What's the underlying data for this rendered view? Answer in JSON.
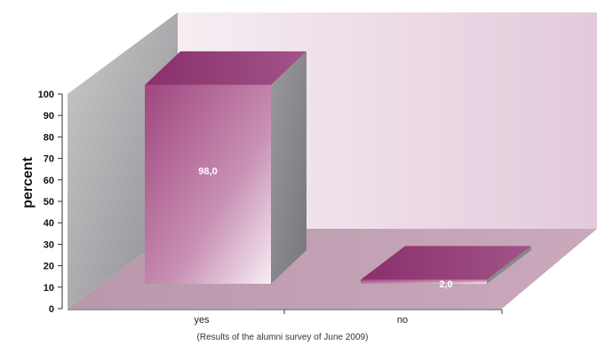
{
  "chart_data": {
    "type": "bar",
    "categories": [
      "yes",
      "no"
    ],
    "values": [
      98.0,
      2.0
    ],
    "data_labels": [
      "98,0",
      "2,0"
    ],
    "ylabel": "percent",
    "ylim": [
      0,
      100
    ],
    "yticks": [
      "0",
      "10",
      "20",
      "30",
      "40",
      "50",
      "60",
      "70",
      "80",
      "90",
      "100"
    ],
    "caption": "(Results of the alumni survey of June 2009)",
    "three_d": true,
    "bar_color": "#a0467f",
    "grid": false,
    "legend": "none"
  }
}
